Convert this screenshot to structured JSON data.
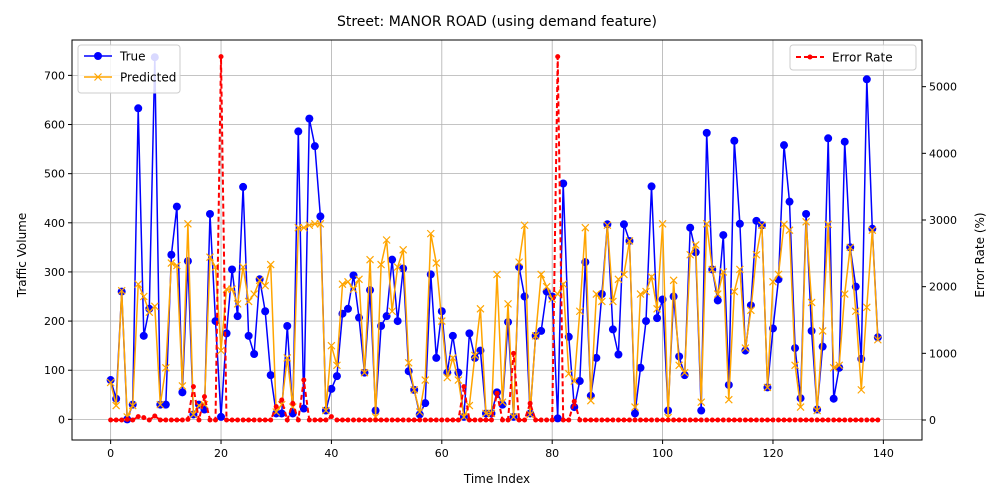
{
  "chart_data": {
    "type": "line",
    "title": "Street: MANOR ROAD (using demand feature)",
    "xlabel": "Time Index",
    "ylabel": "Traffic Volume",
    "ylabel_right": "Error Rate (%)",
    "xlim": [
      -7,
      147
    ],
    "ylim": [
      -42,
      772
    ],
    "ylim_right": [
      -300,
      5700
    ],
    "x_ticks": [
      0,
      20,
      40,
      60,
      80,
      100,
      120,
      140
    ],
    "y_ticks": [
      0,
      100,
      200,
      300,
      400,
      500,
      600,
      700
    ],
    "y_ticks_right": [
      0,
      1000,
      2000,
      3000,
      4000,
      5000
    ],
    "grid": true,
    "legend_left": "top-left",
    "legend_right": "top-right",
    "series": [
      {
        "name": "True",
        "axis": "left",
        "color": "#0000ff",
        "marker": "circle",
        "values": [
          80,
          42,
          260,
          0,
          30,
          633,
          170,
          225,
          737,
          30,
          30,
          335,
          433,
          55,
          322,
          10,
          30,
          20,
          418,
          200,
          5,
          175,
          305,
          210,
          473,
          170,
          133,
          285,
          220,
          90,
          12,
          12,
          190,
          12,
          586,
          22,
          612,
          556,
          413,
          18,
          62,
          88,
          215,
          225,
          293,
          207,
          95,
          263,
          18,
          190,
          210,
          325,
          200,
          307,
          98,
          60,
          10,
          33,
          295,
          125,
          220,
          95,
          170,
          95,
          5,
          175,
          125,
          140,
          12,
          12,
          55,
          30,
          198,
          5,
          310,
          250,
          12,
          170,
          180,
          260,
          250,
          2,
          480,
          168,
          25,
          78,
          320,
          48,
          125,
          255,
          397,
          183,
          132,
          397,
          363,
          12,
          105,
          200,
          474,
          206,
          244,
          18,
          250,
          128,
          90,
          390,
          340,
          18,
          583,
          305,
          242,
          375,
          70,
          567,
          398,
          140,
          232,
          404,
          395,
          65,
          185,
          285,
          558,
          443,
          145,
          43,
          418,
          180,
          20,
          148,
          572,
          42,
          105,
          565,
          350,
          270,
          123,
          692,
          388,
          167
        ]
      },
      {
        "name": "Predicted",
        "axis": "left",
        "color": "#ffa500",
        "marker": "x",
        "values": [
          75,
          28,
          262,
          5,
          28,
          275,
          250,
          218,
          230,
          30,
          105,
          318,
          313,
          68,
          398,
          10,
          28,
          30,
          330,
          310,
          140,
          265,
          265,
          235,
          310,
          240,
          255,
          283,
          272,
          315,
          15,
          30,
          125,
          25,
          390,
          390,
          395,
          398,
          398,
          18,
          150,
          110,
          275,
          280,
          265,
          285,
          95,
          325,
          5,
          315,
          365,
          220,
          310,
          345,
          115,
          60,
          15,
          80,
          378,
          318,
          200,
          85,
          125,
          80,
          5,
          28,
          130,
          225,
          12,
          12,
          295,
          35,
          235,
          5,
          320,
          395,
          10,
          170,
          295,
          270,
          245,
          255,
          275,
          93,
          78,
          220,
          390,
          38,
          255,
          240,
          395,
          240,
          285,
          295,
          363,
          25,
          255,
          260,
          290,
          225,
          398,
          4,
          283,
          110,
          95,
          335,
          355,
          35,
          398,
          305,
          255,
          300,
          40,
          260,
          305,
          145,
          222,
          335,
          395,
          65,
          280,
          295,
          397,
          385,
          110,
          25,
          402,
          238,
          18,
          180,
          397,
          105,
          110,
          255,
          350,
          220,
          60,
          228,
          385,
          162
        ]
      },
      {
        "name": "Error Rate",
        "axis": "right",
        "color": "#ff0000",
        "marker": "dot",
        "dashed": true,
        "values": [
          0,
          0,
          0,
          10,
          0,
          50,
          35,
          0,
          60,
          0,
          0,
          0,
          0,
          0,
          10,
          500,
          0,
          350,
          0,
          0,
          5450,
          0,
          0,
          0,
          0,
          0,
          0,
          0,
          0,
          0,
          200,
          300,
          0,
          250,
          0,
          600,
          0,
          0,
          0,
          0,
          50,
          0,
          0,
          0,
          0,
          0,
          0,
          0,
          0,
          0,
          0,
          0,
          0,
          0,
          0,
          0,
          0,
          0,
          0,
          0,
          0,
          0,
          0,
          0,
          500,
          0,
          0,
          0,
          0,
          0,
          400,
          0,
          0,
          1000,
          0,
          0,
          250,
          0,
          0,
          0,
          0,
          5450,
          0,
          0,
          280,
          0,
          0,
          0,
          0,
          0,
          0,
          0,
          0,
          0,
          0,
          0,
          0,
          0,
          0,
          0,
          0,
          0,
          0,
          0,
          0,
          0,
          0,
          0,
          0,
          0,
          0,
          0,
          0,
          0,
          0,
          0,
          0,
          0,
          0,
          0,
          0,
          0,
          0,
          0,
          0,
          0,
          0,
          0,
          0,
          0,
          0,
          0,
          0,
          0,
          0,
          0,
          0,
          0,
          0,
          0
        ]
      }
    ]
  }
}
